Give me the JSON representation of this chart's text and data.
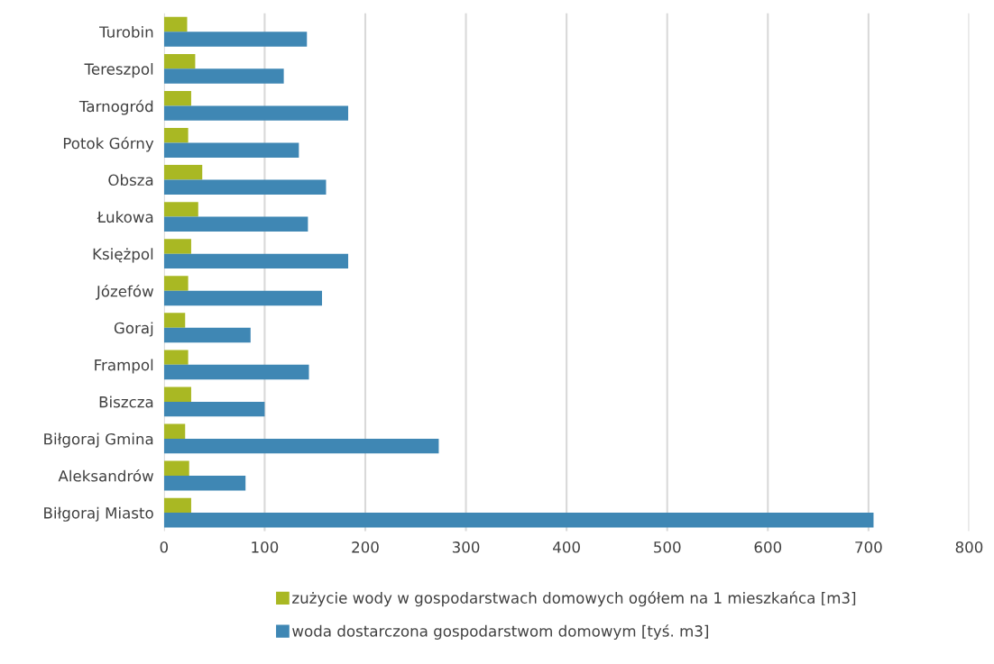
{
  "chart_data": {
    "type": "bar",
    "orientation": "horizontal",
    "categories": [
      "Turobin",
      "Tereszpol",
      "Tarnogród",
      "Potok Górny",
      "Obsza",
      "Łukowa",
      "Księżpol",
      "Józefów",
      "Goraj",
      "Frampol",
      "Biszcza",
      "Biłgoraj Gmina",
      "Aleksandrów",
      "Biłgoraj Miasto"
    ],
    "series": [
      {
        "name": "zużycie wody w gospodarstwach domowych ogółem na 1 mieszkańca [m3]",
        "color": "#a9b823",
        "values": [
          23,
          31,
          27,
          24,
          38,
          34,
          27,
          24,
          21,
          24,
          27,
          21,
          25,
          27
        ]
      },
      {
        "name": "woda dostarczona gospodarstwom domowym [tyś. m3]",
        "color": "#3f87b4",
        "values": [
          142,
          119,
          183,
          134,
          161,
          143,
          183,
          157,
          86,
          144,
          100,
          273,
          81,
          705
        ]
      }
    ],
    "xlim": [
      0,
      800
    ],
    "xticks": [
      0,
      100,
      200,
      300,
      400,
      500,
      600,
      700,
      800
    ],
    "grid": "x",
    "legend": "bottom"
  }
}
